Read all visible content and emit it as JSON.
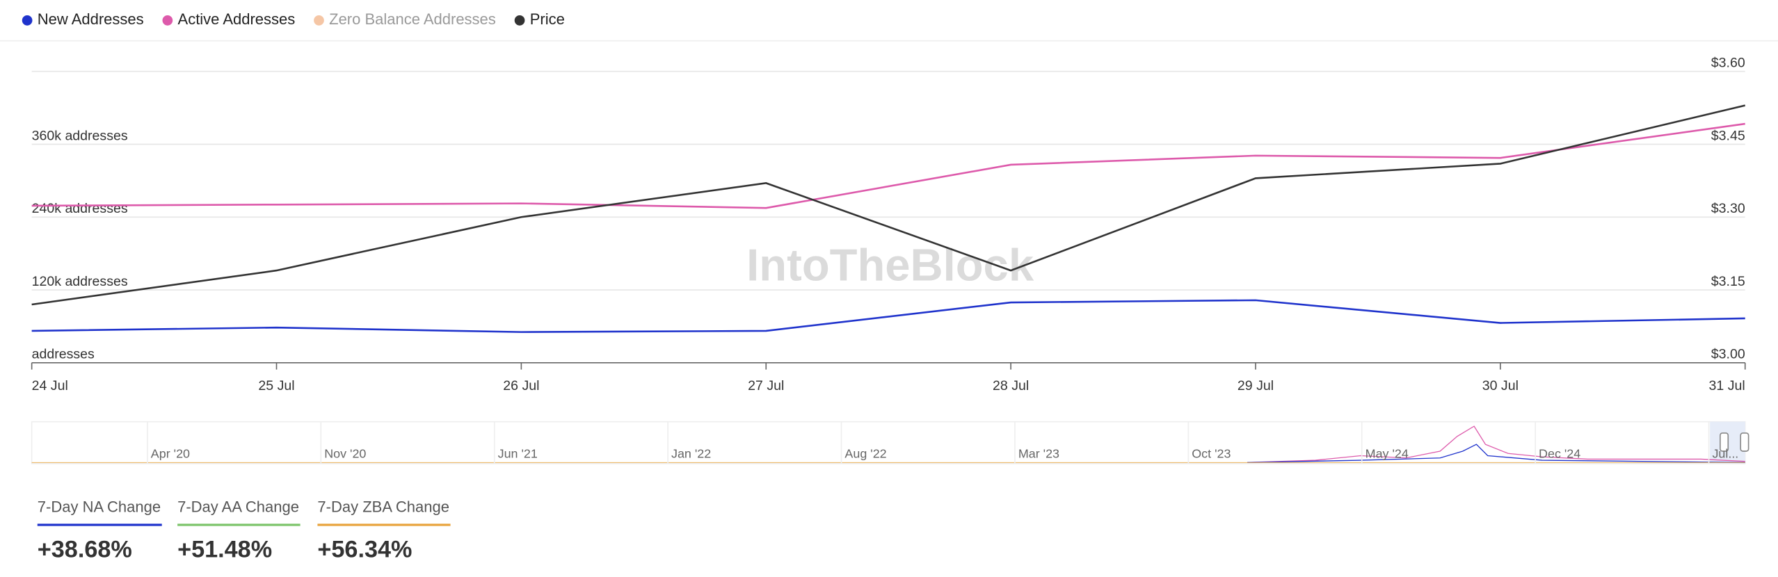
{
  "chart_data": {
    "type": "line",
    "x": [
      "24 Jul",
      "25 Jul",
      "26 Jul",
      "27 Jul",
      "28 Jul",
      "29 Jul",
      "30 Jul",
      "31 Jul"
    ],
    "series": [
      {
        "name": "New Addresses",
        "color": "#1f33cc",
        "values": [
          52500,
          58000,
          50600,
          52500,
          99400,
          103000,
          65600,
          73100
        ]
      },
      {
        "name": "Active Addresses",
        "color": "#dd5aab",
        "values": [
          258750,
          260600,
          262500,
          255000,
          326250,
          341250,
          337500,
          393750
        ]
      },
      {
        "name": "Zero Balance Addresses",
        "color": "#f5c6a5",
        "visible": false,
        "values": [
          null,
          null,
          null,
          null,
          null,
          null,
          null,
          null
        ]
      },
      {
        "name": "Price",
        "color": "#333333",
        "axis": "y2",
        "values": [
          3.12,
          3.19,
          3.3,
          3.37,
          3.19,
          3.38,
          3.41,
          3.53
        ]
      }
    ],
    "ylim": [
      0,
      480000
    ],
    "yticks": [
      {
        "value": 0,
        "label": "addresses"
      },
      {
        "value": 120000,
        "label": "120k addresses"
      },
      {
        "value": 240000,
        "label": "240k addresses"
      },
      {
        "value": 360000,
        "label": "360k addresses"
      },
      {
        "value": 480000,
        "label": ""
      }
    ],
    "y2lim": [
      3.0,
      3.6
    ],
    "y2ticks": [
      {
        "value": 3.0,
        "label": "$3.00"
      },
      {
        "value": 3.15,
        "label": "$3.15"
      },
      {
        "value": 3.3,
        "label": "$3.30"
      },
      {
        "value": 3.45,
        "label": "$3.45"
      },
      {
        "value": 3.6,
        "label": "$3.60"
      }
    ],
    "grid": true,
    "watermark": "IntoTheBlock",
    "navigator_labels": [
      "Apr '20",
      "Nov '20",
      "Jun '21",
      "Jan '22",
      "Aug '22",
      "Mar '23",
      "Oct '23",
      "May '24",
      "Dec '24",
      "Jul..."
    ]
  },
  "stats": [
    {
      "label": "7-Day NA Change",
      "value": "+38.68%",
      "color": "#1f33cc"
    },
    {
      "label": "7-Day AA Change",
      "value": "+51.48%",
      "color": "#7cc46a"
    },
    {
      "label": "7-Day ZBA Change",
      "value": "+56.34%",
      "color": "#e8a33c"
    }
  ]
}
